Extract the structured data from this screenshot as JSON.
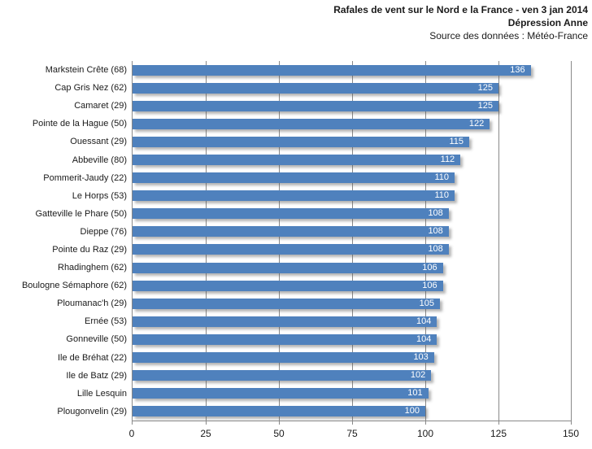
{
  "chart_data": {
    "type": "bar",
    "orientation": "horizontal",
    "title": "Rafales de vent sur le Nord e la France - ven 3 jan 2014",
    "subtitle": "Dépression Anne",
    "source": "Source des données : Météo-France",
    "categories": [
      "Markstein Crête (68)",
      "Cap Gris Nez (62)",
      "Camaret (29)",
      "Pointe de la Hague (50)",
      "Ouessant (29)",
      "Abbeville (80)",
      "Pommerit-Jaudy (22)",
      "Le Horps (53)",
      "Gatteville le Phare (50)",
      "Dieppe (76)",
      "Pointe du Raz (29)",
      "Rhadinghem (62)",
      "Boulogne Sémaphore (62)",
      "Ploumanac'h (29)",
      "Ernée (53)",
      "Gonneville (50)",
      "Ile de Bréhat (22)",
      "Ile de Batz (29)",
      "Lille Lesquin",
      "Plougonvelin (29)"
    ],
    "values": [
      136,
      125,
      125,
      122,
      115,
      112,
      110,
      110,
      108,
      108,
      108,
      106,
      106,
      105,
      104,
      104,
      103,
      102,
      101,
      100
    ],
    "xlabel": "",
    "ylabel": "",
    "xlim": [
      0,
      150
    ],
    "xticks": [
      0,
      25,
      50,
      75,
      100,
      125,
      150
    ],
    "grid": "vertical gridlines on",
    "legend": "none",
    "value_labels": "inside bar end, white",
    "bar_color": "#4F81BD",
    "value_label_color": "#FFFFFF",
    "gridline_color": "#898989",
    "axis_text_color": "#1A1A1A"
  }
}
